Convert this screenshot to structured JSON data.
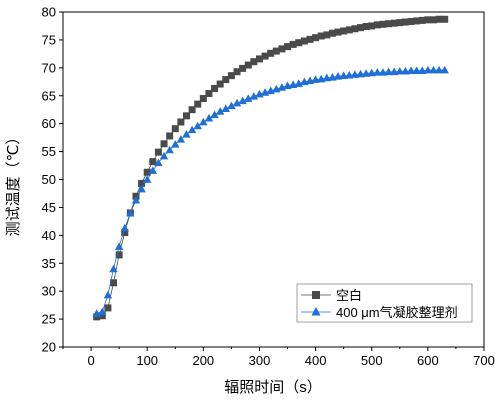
{
  "chart_data": {
    "type": "scatter",
    "xlabel": "辐照时间（s）",
    "ylabel": "测试温度（℃）",
    "xlim": [
      -50,
      700
    ],
    "ylim": [
      20,
      80
    ],
    "x_ticks": [
      0,
      100,
      200,
      300,
      400,
      500,
      600,
      700
    ],
    "y_ticks": [
      20,
      25,
      30,
      35,
      40,
      45,
      50,
      55,
      60,
      65,
      70,
      75,
      80
    ],
    "legend_position": "bottom-right",
    "grid": false,
    "series": [
      {
        "name": "空白",
        "marker": "square",
        "color": "#4a4a4a",
        "points": [
          [
            10,
            25.4
          ],
          [
            20,
            25.6
          ],
          [
            30,
            27.0
          ],
          [
            40,
            31.5
          ],
          [
            50,
            36.5
          ],
          [
            60,
            40.5
          ],
          [
            70,
            44.0
          ],
          [
            80,
            47.0
          ],
          [
            90,
            49.3
          ],
          [
            100,
            51.3
          ],
          [
            110,
            53.2
          ],
          [
            120,
            54.9
          ],
          [
            130,
            56.4
          ],
          [
            140,
            57.8
          ],
          [
            150,
            59.1
          ],
          [
            160,
            60.3
          ],
          [
            170,
            61.4
          ],
          [
            180,
            62.5
          ],
          [
            190,
            63.5
          ],
          [
            200,
            64.5
          ],
          [
            210,
            65.4
          ],
          [
            220,
            66.3
          ],
          [
            230,
            67.1
          ],
          [
            240,
            67.9
          ],
          [
            250,
            68.6
          ],
          [
            260,
            69.3
          ],
          [
            270,
            69.9
          ],
          [
            280,
            70.5
          ],
          [
            290,
            71.1
          ],
          [
            300,
            71.6
          ],
          [
            310,
            72.1
          ],
          [
            320,
            72.6
          ],
          [
            330,
            73.0
          ],
          [
            340,
            73.4
          ],
          [
            350,
            73.8
          ],
          [
            360,
            74.2
          ],
          [
            370,
            74.5
          ],
          [
            380,
            74.8
          ],
          [
            390,
            75.1
          ],
          [
            400,
            75.4
          ],
          [
            410,
            75.7
          ],
          [
            420,
            75.9
          ],
          [
            430,
            76.2
          ],
          [
            440,
            76.4
          ],
          [
            450,
            76.6
          ],
          [
            460,
            76.8
          ],
          [
            470,
            77.0
          ],
          [
            480,
            77.2
          ],
          [
            490,
            77.4
          ],
          [
            500,
            77.5
          ],
          [
            510,
            77.7
          ],
          [
            520,
            77.8
          ],
          [
            530,
            77.9
          ],
          [
            540,
            78.0
          ],
          [
            550,
            78.1
          ],
          [
            560,
            78.2
          ],
          [
            570,
            78.3
          ],
          [
            580,
            78.4
          ],
          [
            590,
            78.5
          ],
          [
            600,
            78.6
          ],
          [
            610,
            78.6
          ],
          [
            620,
            78.7
          ],
          [
            630,
            78.7
          ]
        ]
      },
      {
        "name": "400 μm气凝胶整理剂",
        "marker": "triangle",
        "color": "#1f6fd6",
        "points": [
          [
            10,
            26.0
          ],
          [
            20,
            26.3
          ],
          [
            30,
            29.3
          ],
          [
            40,
            34.0
          ],
          [
            50,
            38.0
          ],
          [
            60,
            41.3
          ],
          [
            70,
            44.0
          ],
          [
            80,
            46.3
          ],
          [
            90,
            48.3
          ],
          [
            100,
            50.0
          ],
          [
            110,
            51.6
          ],
          [
            120,
            53.0
          ],
          [
            130,
            54.2
          ],
          [
            140,
            55.3
          ],
          [
            150,
            56.3
          ],
          [
            160,
            57.2
          ],
          [
            170,
            58.1
          ],
          [
            180,
            58.9
          ],
          [
            190,
            59.6
          ],
          [
            200,
            60.3
          ],
          [
            210,
            61.0
          ],
          [
            220,
            61.6
          ],
          [
            230,
            62.2
          ],
          [
            240,
            62.7
          ],
          [
            250,
            63.2
          ],
          [
            260,
            63.7
          ],
          [
            270,
            64.1
          ],
          [
            280,
            64.5
          ],
          [
            290,
            64.9
          ],
          [
            300,
            65.3
          ],
          [
            310,
            65.6
          ],
          [
            320,
            65.9
          ],
          [
            330,
            66.2
          ],
          [
            340,
            66.5
          ],
          [
            350,
            66.8
          ],
          [
            360,
            67.0
          ],
          [
            370,
            67.2
          ],
          [
            380,
            67.5
          ],
          [
            390,
            67.7
          ],
          [
            400,
            67.9
          ],
          [
            410,
            68.0
          ],
          [
            420,
            68.2
          ],
          [
            430,
            68.3
          ],
          [
            440,
            68.5
          ],
          [
            450,
            68.6
          ],
          [
            460,
            68.7
          ],
          [
            470,
            68.8
          ],
          [
            480,
            68.9
          ],
          [
            490,
            69.0
          ],
          [
            500,
            69.1
          ],
          [
            510,
            69.2
          ],
          [
            520,
            69.2
          ],
          [
            530,
            69.3
          ],
          [
            540,
            69.3
          ],
          [
            550,
            69.4
          ],
          [
            560,
            69.4
          ],
          [
            570,
            69.5
          ],
          [
            580,
            69.5
          ],
          [
            590,
            69.5
          ],
          [
            600,
            69.6
          ],
          [
            610,
            69.6
          ],
          [
            620,
            69.6
          ],
          [
            630,
            69.6
          ]
        ]
      }
    ]
  }
}
